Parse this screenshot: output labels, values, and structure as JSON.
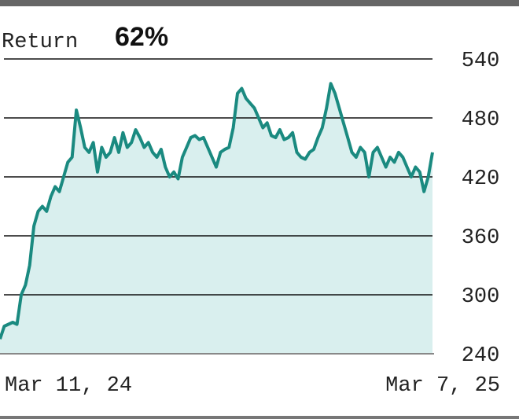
{
  "chart_data": {
    "type": "line",
    "title": "Return",
    "annotation": "62%",
    "categories": [
      "Mar 11, 24",
      null,
      null,
      null,
      null,
      null,
      null,
      null,
      null,
      null,
      null,
      null,
      null,
      null,
      null,
      null,
      null,
      null,
      null,
      null,
      null,
      null,
      null,
      null,
      null,
      null,
      null,
      null,
      null,
      null,
      null,
      null,
      null,
      null,
      null,
      null,
      null,
      null,
      null,
      null,
      null,
      null,
      null,
      null,
      null,
      null,
      null,
      null,
      null,
      null,
      null,
      null,
      null,
      null,
      null,
      null,
      null,
      null,
      null,
      null,
      null,
      null,
      null,
      null,
      null,
      null,
      null,
      null,
      null,
      null,
      null,
      null,
      null,
      null,
      null,
      null,
      null,
      null,
      null,
      null,
      null,
      null,
      null,
      null,
      null,
      null,
      null,
      null,
      null,
      null,
      null,
      null,
      null,
      null,
      null,
      null,
      null,
      null,
      null,
      null,
      null,
      null,
      "Mar 7, 25"
    ],
    "values": [
      255,
      268,
      270,
      272,
      270,
      300,
      310,
      330,
      370,
      385,
      390,
      385,
      400,
      410,
      405,
      420,
      435,
      440,
      488,
      470,
      450,
      445,
      455,
      425,
      450,
      440,
      445,
      460,
      445,
      465,
      450,
      455,
      468,
      460,
      450,
      455,
      445,
      440,
      448,
      430,
      420,
      425,
      418,
      440,
      450,
      460,
      462,
      458,
      460,
      450,
      440,
      430,
      445,
      448,
      450,
      470,
      505,
      510,
      500,
      495,
      490,
      480,
      470,
      475,
      462,
      460,
      468,
      458,
      460,
      465,
      445,
      440,
      438,
      445,
      448,
      460,
      470,
      490,
      515,
      505,
      490,
      475,
      460,
      445,
      440,
      450,
      445,
      420,
      445,
      450,
      440,
      430,
      440,
      435,
      445,
      440,
      430,
      420,
      430,
      425,
      405,
      420,
      445
    ],
    "color": "#1a8a80",
    "fill": "#d9efee",
    "ylim": [
      240,
      540
    ],
    "yticks": [
      240,
      300,
      360,
      420,
      480,
      540
    ],
    "grid": true
  }
}
